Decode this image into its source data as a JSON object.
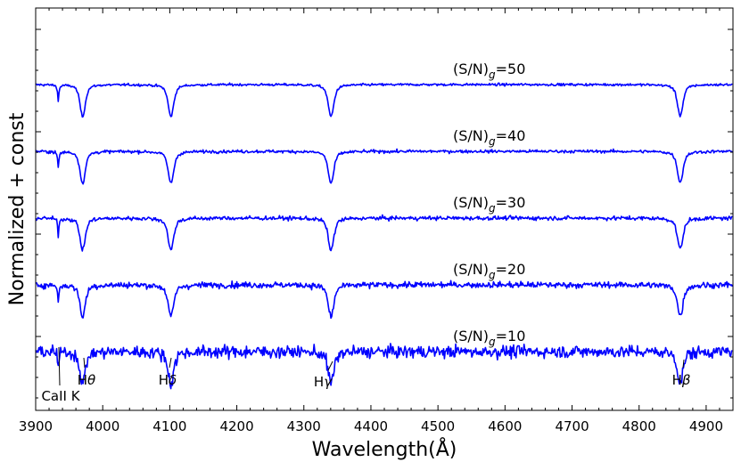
{
  "chart_data": {
    "type": "line",
    "xlabel": "Wavelength(Å)",
    "ylabel": "Normalized + const",
    "xlim": [
      3900,
      4940
    ],
    "x_ticks": [
      3900,
      4000,
      4100,
      4200,
      4300,
      4400,
      4500,
      4600,
      4700,
      4800,
      4900
    ],
    "y_ticklabels_shown": false,
    "grid": false,
    "line_color": "#0000ff",
    "series": [
      {
        "name": "(S/N)g=50",
        "sn": 50,
        "label_main": "(S/N)",
        "label_sub": "g",
        "label_tail": "=50",
        "offset": 4
      },
      {
        "name": "(S/N)g=40",
        "sn": 40,
        "label_main": "(S/N)",
        "label_sub": "g",
        "label_tail": "=40",
        "offset": 3
      },
      {
        "name": "(S/N)g=30",
        "sn": 30,
        "label_main": "(S/N)",
        "label_sub": "g",
        "label_tail": "=30",
        "offset": 2
      },
      {
        "name": "(S/N)g=20",
        "sn": 20,
        "label_main": "(S/N)",
        "label_sub": "g",
        "label_tail": "=20",
        "offset": 1
      },
      {
        "name": "(S/N)g=10",
        "sn": 10,
        "label_main": "(S/N)",
        "label_sub": "g",
        "label_tail": "=10",
        "offset": 0
      }
    ],
    "absorption_lines": [
      {
        "label": "CaII K",
        "wavelength": 3933.7
      },
      {
        "label": "Hθ",
        "wavelength": 3970.1
      },
      {
        "label": "Hδ",
        "wavelength": 4101.7
      },
      {
        "label": "Hγ",
        "wavelength": 4340.5
      },
      {
        "label": "Hβ",
        "wavelength": 4861.3
      }
    ]
  }
}
